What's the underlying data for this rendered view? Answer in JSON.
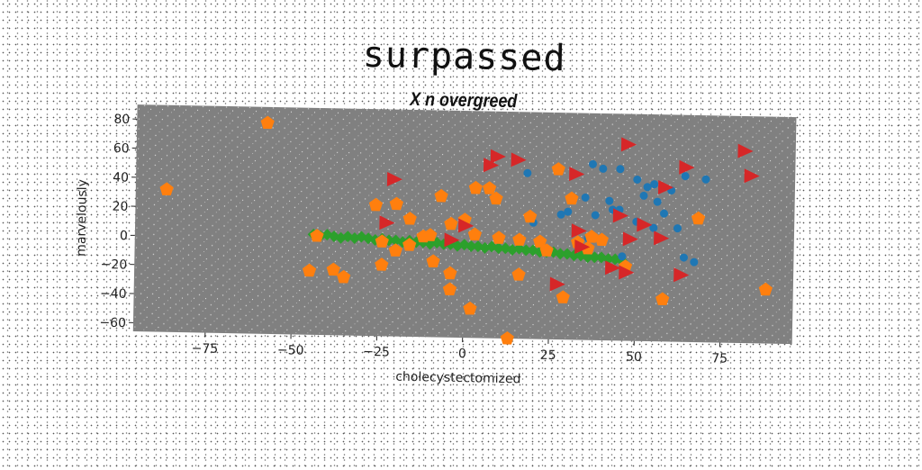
{
  "title": "surpassed",
  "subtitle": "X n overgreed",
  "chart_data": {
    "type": "scatter",
    "title": "surpassed",
    "subtitle": "X n overgreed",
    "xlabel": "cholecystectomized",
    "ylabel": "marvelously",
    "xlim": [
      -96,
      96
    ],
    "ylim": [
      -66,
      90
    ],
    "xticks": [
      -75,
      -50,
      -25,
      0,
      25,
      50,
      75
    ],
    "yticks": [
      -60,
      -40,
      -20,
      0,
      20,
      40,
      60,
      80
    ],
    "grid": false,
    "plot_background": "#808080",
    "series": [
      {
        "color": "#1f77b4",
        "marker": "circle",
        "points": [
          [
            37,
            55
          ],
          [
            40,
            52
          ],
          [
            45,
            52
          ],
          [
            18,
            48
          ],
          [
            50,
            45
          ],
          [
            53,
            40
          ],
          [
            55,
            42
          ],
          [
            60,
            38
          ],
          [
            64,
            48
          ],
          [
            70,
            46
          ],
          [
            52,
            34
          ],
          [
            56,
            30
          ],
          [
            58,
            22
          ],
          [
            35,
            32
          ],
          [
            42,
            30
          ],
          [
            43,
            24
          ],
          [
            38,
            20
          ],
          [
            45,
            24
          ],
          [
            30,
            22
          ],
          [
            28,
            20
          ],
          [
            50,
            16
          ],
          [
            55,
            12
          ],
          [
            62,
            12
          ],
          [
            20,
            14
          ],
          [
            64,
            -8
          ],
          [
            67,
            -11
          ],
          [
            46,
            -8
          ],
          [
            36,
            4
          ]
        ]
      },
      {
        "color": "#ff7f0e",
        "marker": "pentagon",
        "points": [
          [
            -58,
            79
          ],
          [
            -87,
            32
          ],
          [
            -26,
            24
          ],
          [
            -20,
            25
          ],
          [
            -16,
            15
          ],
          [
            -12,
            3
          ],
          [
            -10,
            4
          ],
          [
            -24,
            -1
          ],
          [
            -16,
            -3
          ],
          [
            -20,
            -7
          ],
          [
            -9,
            -14
          ],
          [
            -24,
            -17
          ],
          [
            -45,
            -22
          ],
          [
            -38,
            -21
          ],
          [
            -35,
            -26
          ],
          [
            -7,
            31
          ],
          [
            3,
            37
          ],
          [
            7,
            37
          ],
          [
            9,
            30
          ],
          [
            27,
            51
          ],
          [
            31,
            31
          ],
          [
            19,
            18
          ],
          [
            0,
            15
          ],
          [
            3,
            5
          ],
          [
            10,
            3
          ],
          [
            24,
            -5
          ],
          [
            33,
            1
          ],
          [
            40,
            3
          ],
          [
            37,
            5
          ],
          [
            -4,
            12
          ],
          [
            47,
            -15
          ],
          [
            36,
            -3
          ],
          [
            -4,
            -22
          ],
          [
            -4,
            -33
          ],
          [
            16,
            -22
          ],
          [
            29,
            -37
          ],
          [
            2,
            -46
          ],
          [
            13,
            -66
          ],
          [
            58,
            -37
          ],
          [
            68,
            19
          ],
          [
            88,
            -29
          ],
          [
            -43,
            2
          ],
          [
            16,
            2
          ],
          [
            22,
            1
          ]
        ]
      },
      {
        "color": "#2ca02c",
        "marker": "diamond",
        "points": [
          [
            -44,
            3
          ],
          [
            -42,
            2
          ],
          [
            -40,
            3
          ],
          [
            -38,
            2
          ],
          [
            -36,
            1
          ],
          [
            -34,
            2
          ],
          [
            -32,
            1
          ],
          [
            -30,
            2
          ],
          [
            -28,
            1
          ],
          [
            -26,
            0
          ],
          [
            -24,
            1
          ],
          [
            -22,
            0
          ],
          [
            -20,
            0
          ],
          [
            -18,
            -1
          ],
          [
            -16,
            0
          ],
          [
            -14,
            -1
          ],
          [
            -12,
            -1
          ],
          [
            -10,
            -2
          ],
          [
            -8,
            -1
          ],
          [
            -6,
            -2
          ],
          [
            -4,
            -2
          ],
          [
            -2,
            -3
          ],
          [
            0,
            -2
          ],
          [
            2,
            -3
          ],
          [
            4,
            -3
          ],
          [
            6,
            -4
          ],
          [
            8,
            -3
          ],
          [
            10,
            -4
          ],
          [
            12,
            -4
          ],
          [
            14,
            -5
          ],
          [
            16,
            -4
          ],
          [
            18,
            -5
          ],
          [
            20,
            -5
          ],
          [
            22,
            -6
          ],
          [
            24,
            -6
          ],
          [
            26,
            -6
          ],
          [
            28,
            -7
          ],
          [
            30,
            -7
          ],
          [
            32,
            -8
          ],
          [
            34,
            -8
          ],
          [
            36,
            -9
          ],
          [
            38,
            -9
          ],
          [
            40,
            -9
          ],
          [
            42,
            -10
          ],
          [
            44,
            -10
          ],
          [
            46,
            -11
          ]
        ]
      },
      {
        "color": "#d62728",
        "marker": "triangle-right",
        "points": [
          [
            -21,
            42
          ],
          [
            -23,
            12
          ],
          [
            0,
            11
          ],
          [
            -4,
            1
          ],
          [
            7,
            53
          ],
          [
            9,
            59
          ],
          [
            15,
            57
          ],
          [
            32,
            48
          ],
          [
            47,
            69
          ],
          [
            58,
            40
          ],
          [
            64,
            54
          ],
          [
            81,
            66
          ],
          [
            83,
            49
          ],
          [
            45,
            20
          ],
          [
            52,
            14
          ],
          [
            57,
            5
          ],
          [
            48,
            4
          ],
          [
            33,
            9
          ],
          [
            34,
            -2
          ],
          [
            43,
            -16
          ],
          [
            47,
            -19
          ],
          [
            27,
            -28
          ],
          [
            63,
            -20
          ]
        ]
      }
    ]
  }
}
